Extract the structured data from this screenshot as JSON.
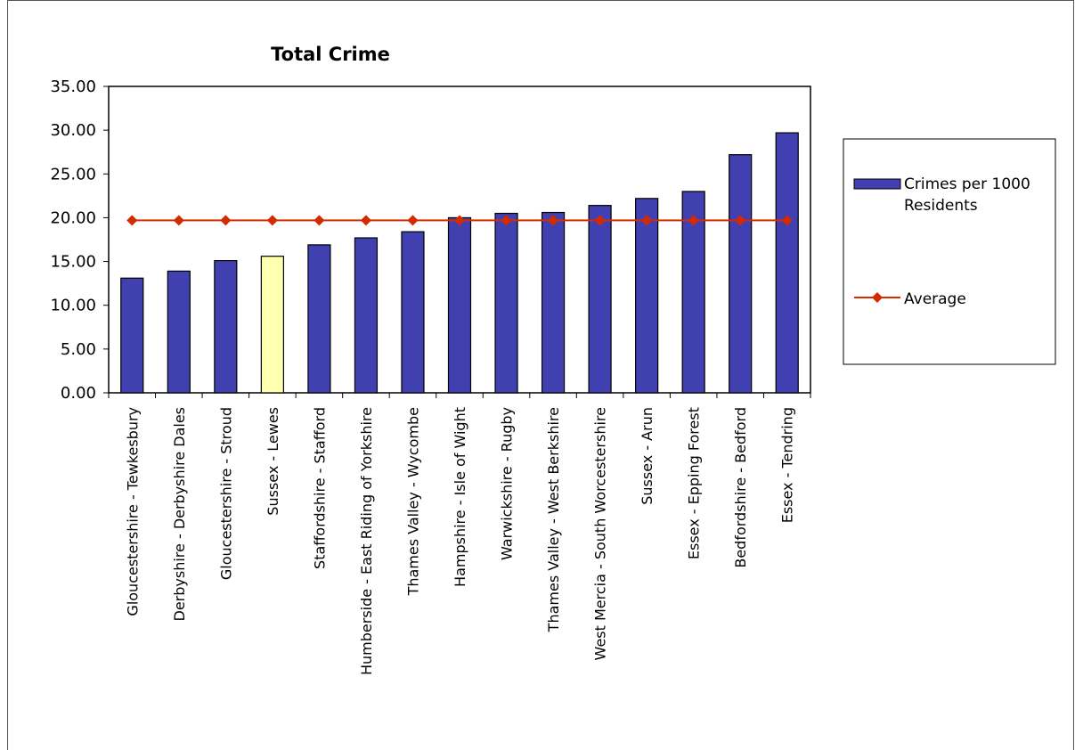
{
  "chart_data": {
    "type": "bar",
    "title": "Total Crime",
    "xlabel": "",
    "ylabel": "",
    "ylim": [
      0,
      35
    ],
    "yticks": [
      "0.00",
      "5.00",
      "10.00",
      "15.00",
      "20.00",
      "25.00",
      "30.00",
      "35.00"
    ],
    "grid": false,
    "legend_position": "right",
    "categories": [
      "Gloucestershire - Tewkesbury",
      "Derbyshire - Derbyshire Dales",
      "Gloucestershire - Stroud",
      "Sussex - Lewes",
      "Staffordshire - Stafford",
      "Humberside - East Riding of Yorkshire",
      "Thames Valley - Wycombe",
      "Hampshire - Isle of Wight",
      "Warwickshire - Rugby",
      "Thames Valley - West Berkshire",
      "West Mercia - South Worcestershire",
      "Sussex - Arun",
      "Essex - Epping Forest",
      "Bedfordshire - Bedford",
      "Essex - Tendring"
    ],
    "series": [
      {
        "name": "Crimes per 1000 Residents",
        "type": "bar",
        "color": "#4040b0",
        "highlight_index": 3,
        "highlight_color": "#ffffb0",
        "values": [
          13.1,
          13.9,
          15.1,
          15.6,
          16.9,
          17.7,
          18.4,
          20.0,
          20.5,
          20.6,
          21.4,
          22.2,
          23.0,
          27.2,
          29.7
        ]
      },
      {
        "name": "Average",
        "type": "line",
        "color": "#d42a00",
        "marker": "diamond",
        "values": [
          19.7,
          19.7,
          19.7,
          19.7,
          19.7,
          19.7,
          19.7,
          19.7,
          19.7,
          19.7,
          19.7,
          19.7,
          19.7,
          19.7,
          19.7
        ]
      }
    ],
    "legend": [
      {
        "label": "Crimes per 1000",
        "label2": "Residents"
      },
      {
        "label": "Average"
      }
    ]
  }
}
